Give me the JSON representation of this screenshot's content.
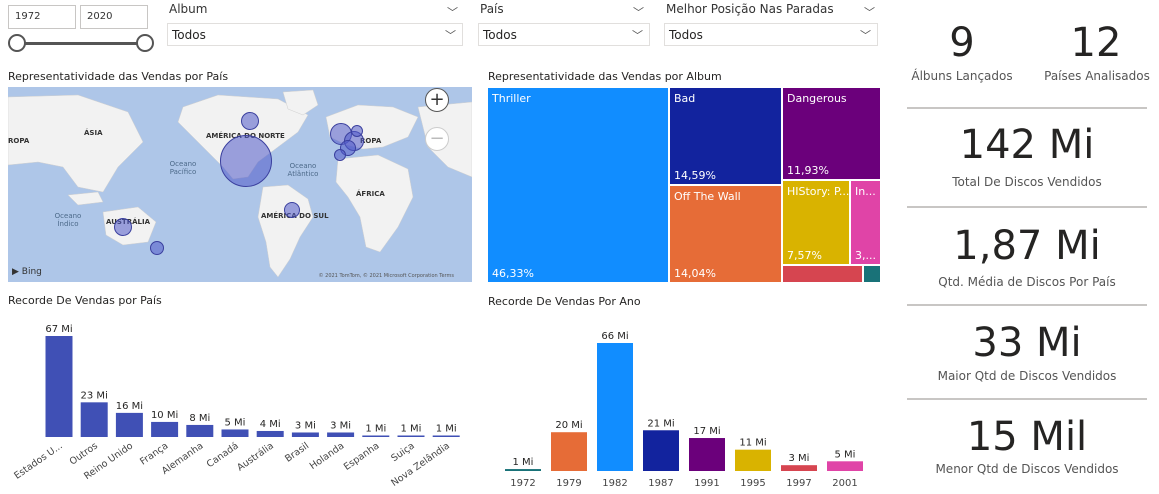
{
  "year_slicer": {
    "start": "1972",
    "end": "2020"
  },
  "slicers": [
    {
      "title": "Album",
      "value": "Todos"
    },
    {
      "title": "País",
      "value": "Todos"
    },
    {
      "title": "Melhor Posição Nas Paradas",
      "value": "Todos"
    }
  ],
  "map": {
    "title": "Representatividade das Vendas por País",
    "labels": {
      "asia": "ÁSIA",
      "europa_left": "ROPA",
      "america_norte": "AMÉRICA DO NORTE",
      "europa_right": "ROPA",
      "oceano_pacifico": "Oceano\nPacífico",
      "oceano_atlantico": "Oceano\nAtlântico",
      "africa": "ÁFRICA",
      "australia": "AUSTRÁLIA",
      "oceano_indico": "Oceano\nÍndico",
      "america_sul": "AMÉRICA DO SUL"
    },
    "bing": "Bing",
    "copyright": "© 2021 TomTom, © 2021 Microsoft Corporation  Terms",
    "zoom_in": "+",
    "zoom_out": "−"
  },
  "treemap": {
    "title": "Representatividade das Vendas por Album",
    "cells": [
      {
        "name": "Thriller",
        "pct": "46,33%",
        "color": "#118dff"
      },
      {
        "name": "Bad",
        "pct": "14,59%",
        "color": "#12239e"
      },
      {
        "name": "Dangerous",
        "pct": "11,93%",
        "color": "#6b007b"
      },
      {
        "name": "Off The Wall",
        "pct": "14,04%",
        "color": "#e66c37"
      },
      {
        "name": "HIStory: P...",
        "pct": "7,57%",
        "color": "#d9b300"
      },
      {
        "name": "In...",
        "pct": "3,...",
        "color": "#e044a7"
      },
      {
        "name": "",
        "pct": "",
        "color": "#d64550"
      },
      {
        "name": "",
        "pct": "",
        "color": "#197278"
      }
    ]
  },
  "kpis": {
    "albuns": {
      "value": "9",
      "label": "Álbuns Lançados"
    },
    "paises": {
      "value": "12",
      "label": "Países Analisados"
    },
    "total": {
      "value": "142 Mi",
      "label": "Total De Discos Vendidos"
    },
    "media": {
      "value": "1,87 Mi",
      "label": "Qtd. Média de Discos Por País"
    },
    "maior": {
      "value": "33 Mi",
      "label": "Maior Qtd de Discos Vendidos"
    },
    "menor": {
      "value": "15 Mil",
      "label": "Menor Qtd de Discos Vendidos"
    }
  },
  "chart_data": [
    {
      "type": "bar",
      "title": "Recorde De Vendas por País",
      "categories": [
        "Estados U...",
        "Outros",
        "Reino Unido",
        "França",
        "Alemanha",
        "Canadá",
        "Austrália",
        "Brasil",
        "Holanda",
        "Espanha",
        "Suiça",
        "Nova Zelândia"
      ],
      "values": [
        67,
        23,
        16,
        10,
        8,
        5,
        4,
        3,
        3,
        1,
        1,
        1
      ],
      "data_labels": [
        "67 Mi",
        "23 Mi",
        "16 Mi",
        "10 Mi",
        "8 Mi",
        "5 Mi",
        "4 Mi",
        "3 Mi",
        "3 Mi",
        "1 Mi",
        "1 Mi",
        "1 Mi"
      ],
      "colors": [
        "#4050b5"
      ],
      "ylim": [
        0,
        67
      ]
    },
    {
      "type": "bar",
      "title": "Recorde De Vendas Por Ano",
      "categories": [
        "1972",
        "1979",
        "1982",
        "1987",
        "1991",
        "1995",
        "1997",
        "2001"
      ],
      "values": [
        1,
        20,
        66,
        21,
        17,
        11,
        3,
        5
      ],
      "data_labels": [
        "1 Mi",
        "20 Mi",
        "66 Mi",
        "21 Mi",
        "17 Mi",
        "11 Mi",
        "3 Mi",
        "5 Mi"
      ],
      "colors": [
        "#197278",
        "#e66c37",
        "#118dff",
        "#12239e",
        "#6b007b",
        "#d9b300",
        "#d64550",
        "#e044a7"
      ],
      "ylim": [
        0,
        66
      ]
    }
  ]
}
